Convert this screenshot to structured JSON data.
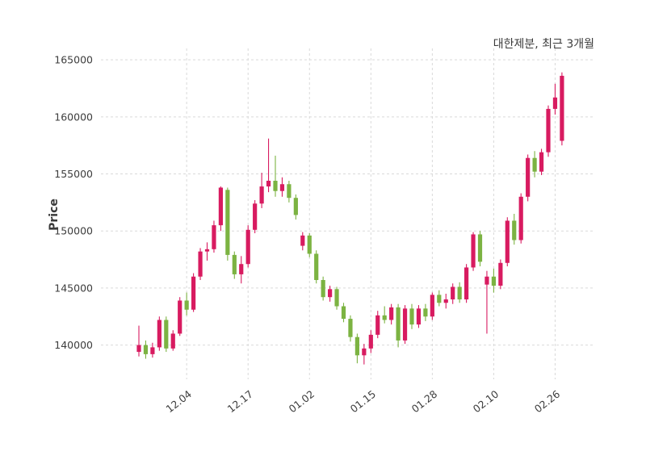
{
  "page": {
    "background": "#ffffff"
  },
  "chart_data": {
    "type": "candlestick",
    "title": "대한제분, 최근 3개월",
    "ylabel": "Price",
    "xlabel": "",
    "ylim": [
      137000,
      166000
    ],
    "yticks": [
      140000,
      145000,
      150000,
      155000,
      160000,
      165000
    ],
    "xticks": [
      {
        "index": 7,
        "label": "12.04"
      },
      {
        "index": 16,
        "label": "12.17"
      },
      {
        "index": 25,
        "label": "01.02"
      },
      {
        "index": 34,
        "label": "01.15"
      },
      {
        "index": 43,
        "label": "01.28"
      },
      {
        "index": 52,
        "label": "02.10"
      },
      {
        "index": 61,
        "label": "02.26"
      }
    ],
    "grid": "dashed-both-axes",
    "legend": "none",
    "colors": {
      "up": "#d81b60",
      "down": "#7cb342",
      "grid": "#d9d9d9",
      "text": "#3d3d3d",
      "background": "#ffffff"
    },
    "candles_format": [
      "open",
      "high",
      "low",
      "close"
    ],
    "candles": [
      [
        139400,
        141700,
        139000,
        140000
      ],
      [
        140000,
        140400,
        138800,
        139200
      ],
      [
        139200,
        140200,
        138900,
        139800
      ],
      [
        139800,
        142500,
        139500,
        142200
      ],
      [
        142200,
        142500,
        139400,
        139700
      ],
      [
        139700,
        141300,
        139500,
        141000
      ],
      [
        141000,
        144200,
        140800,
        143900
      ],
      [
        143900,
        144600,
        142600,
        143100
      ],
      [
        143100,
        146300,
        142900,
        146000
      ],
      [
        146000,
        148500,
        145700,
        148200
      ],
      [
        148200,
        149000,
        147400,
        148400
      ],
      [
        148400,
        150900,
        148100,
        150500
      ],
      [
        150500,
        153900,
        150000,
        153800
      ],
      [
        153600,
        153800,
        147400,
        147900
      ],
      [
        147900,
        148200,
        145800,
        146200
      ],
      [
        146200,
        147800,
        145400,
        147100
      ],
      [
        147100,
        150500,
        146800,
        150100
      ],
      [
        150100,
        152700,
        149800,
        152400
      ],
      [
        152400,
        155100,
        152000,
        153900
      ],
      [
        153900,
        158100,
        153400,
        154400
      ],
      [
        154400,
        156600,
        153000,
        153500
      ],
      [
        153500,
        154700,
        153000,
        154100
      ],
      [
        154100,
        154400,
        152500,
        152900
      ],
      [
        152900,
        153200,
        151000,
        151400
      ],
      [
        148700,
        149900,
        148300,
        149600
      ],
      [
        149600,
        149800,
        147700,
        148000
      ],
      [
        148000,
        148300,
        145400,
        145700
      ],
      [
        145700,
        146000,
        143900,
        144200
      ],
      [
        144200,
        145200,
        143800,
        144900
      ],
      [
        144900,
        145100,
        143100,
        143400
      ],
      [
        143400,
        143700,
        142000,
        142300
      ],
      [
        142300,
        142600,
        140300,
        140700
      ],
      [
        140700,
        141000,
        138400,
        139100
      ],
      [
        139100,
        140100,
        138300,
        139700
      ],
      [
        139700,
        141300,
        139300,
        140900
      ],
      [
        140900,
        143000,
        140600,
        142600
      ],
      [
        142600,
        143400,
        141900,
        142200
      ],
      [
        142200,
        143600,
        141800,
        143300
      ],
      [
        143300,
        143600,
        139800,
        140400
      ],
      [
        140400,
        143500,
        140100,
        143200
      ],
      [
        143200,
        143600,
        141400,
        141800
      ],
      [
        141800,
        143500,
        141500,
        143200
      ],
      [
        143200,
        143600,
        142100,
        142500
      ],
      [
        142500,
        144600,
        142200,
        144400
      ],
      [
        144400,
        144800,
        143400,
        143700
      ],
      [
        143700,
        144500,
        143200,
        144000
      ],
      [
        144000,
        145400,
        143600,
        145100
      ],
      [
        145100,
        145500,
        143700,
        144000
      ],
      [
        144000,
        147100,
        143700,
        146800
      ],
      [
        146800,
        149900,
        146500,
        149700
      ],
      [
        149700,
        150000,
        146900,
        147300
      ],
      [
        145300,
        146500,
        141000,
        146000
      ],
      [
        146000,
        146700,
        144600,
        145200
      ],
      [
        145200,
        147500,
        144900,
        147200
      ],
      [
        147200,
        151200,
        146900,
        150900
      ],
      [
        150900,
        151500,
        148800,
        149200
      ],
      [
        149200,
        153300,
        148900,
        153000
      ],
      [
        153000,
        156700,
        152600,
        156400
      ],
      [
        156400,
        157000,
        154700,
        155200
      ],
      [
        155200,
        157200,
        154900,
        156900
      ],
      [
        156900,
        161000,
        156500,
        160700
      ],
      [
        160700,
        162900,
        160200,
        161700
      ],
      [
        157900,
        163900,
        157500,
        163600
      ]
    ]
  }
}
